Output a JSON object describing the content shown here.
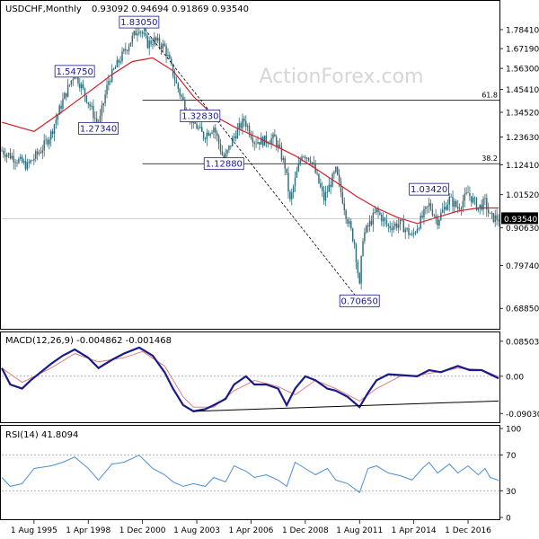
{
  "header": {
    "symbol": "USDCHF,Monthly",
    "ohlc": "0.93092 0.94694 0.91869 0.93540"
  },
  "watermark": "ActionForex.com",
  "colors": {
    "candle": "#2f6b78",
    "ma": "#d0202a",
    "macd": "#1a1a8c",
    "signal": "#e08080",
    "rsi": "#4a8fd8",
    "grid": "#c8c8c8",
    "axis": "#000000",
    "trend": "#000000",
    "label_border": "#1a1a8c"
  },
  "chart_data": [
    {
      "type": "candlestick",
      "panel": "price",
      "y_scale": "log",
      "ylim": [
        0.65,
        1.95
      ],
      "y_ticks": [
        1.7841,
        1.6719,
        1.563,
        1.4541,
        1.3452,
        1.2363,
        1.1241,
        1.0152,
        0.9063,
        0.7974,
        0.6885
      ],
      "y_tick_labels": [
        "1.78410",
        "1.67190",
        "1.56300",
        "1.45410",
        "1.34520",
        "1.23630",
        "1.12410",
        "1.01520",
        "0.90630",
        "0.79740",
        "0.68850"
      ],
      "x_range": [
        "1994-01",
        "2018-06"
      ],
      "x_ticks": [
        "1995-08",
        "1998-04",
        "2000-12",
        "2003-08",
        "2006-04",
        "2008-12",
        "2011-08",
        "2014-04",
        "2016-12"
      ],
      "x_tick_labels": [
        "1 Aug 1995",
        "1 Apr 1998",
        "1 Dec 2000",
        "1 Aug 2003",
        "1 Apr 2006",
        "1 Dec 2008",
        "1 Aug 2011",
        "1 Apr 2014",
        "1 Dec 2016"
      ],
      "price_path": [
        [
          "1994-01",
          1.18
        ],
        [
          "1995-04",
          1.12
        ],
        [
          "1996-01",
          1.19
        ],
        [
          "1996-06",
          1.25
        ],
        [
          "1997-01",
          1.4
        ],
        [
          "1997-08",
          1.54
        ],
        [
          "1998-01",
          1.45
        ],
        [
          "1998-10",
          1.28
        ],
        [
          "1999-04",
          1.5
        ],
        [
          "2000-01",
          1.65
        ],
        [
          "2000-10",
          1.8
        ],
        [
          "2001-03",
          1.7
        ],
        [
          "2001-07",
          1.72
        ],
        [
          "2002-01",
          1.68
        ],
        [
          "2002-08",
          1.48
        ],
        [
          "2003-02",
          1.35
        ],
        [
          "2003-06",
          1.3
        ],
        [
          "2003-12",
          1.24
        ],
        [
          "2004-06",
          1.28
        ],
        [
          "2004-12",
          1.14
        ],
        [
          "2005-06",
          1.24
        ],
        [
          "2005-12",
          1.31
        ],
        [
          "2006-06",
          1.22
        ],
        [
          "2006-11",
          1.22
        ],
        [
          "2007-06",
          1.23
        ],
        [
          "2007-12",
          1.12
        ],
        [
          "2008-03",
          0.99
        ],
        [
          "2008-10",
          1.17
        ],
        [
          "2009-03",
          1.15
        ],
        [
          "2009-11",
          1.0
        ],
        [
          "2010-06",
          1.1
        ],
        [
          "2010-12",
          0.95
        ],
        [
          "2011-05",
          0.86
        ],
        [
          "2011-08",
          0.74
        ],
        [
          "2011-10",
          0.88
        ],
        [
          "2012-06",
          0.96
        ],
        [
          "2013-01",
          0.91
        ],
        [
          "2013-08",
          0.92
        ],
        [
          "2014-03",
          0.88
        ],
        [
          "2014-09",
          0.94
        ],
        [
          "2015-01",
          0.98
        ],
        [
          "2015-06",
          0.93
        ],
        [
          "2016-01",
          1.0
        ],
        [
          "2016-06",
          0.97
        ],
        [
          "2016-12",
          1.02
        ],
        [
          "2017-06",
          0.97
        ],
        [
          "2017-10",
          0.99
        ],
        [
          "2018-01",
          0.94
        ],
        [
          "2018-06",
          0.9354
        ]
      ],
      "ma_path": [
        [
          "1994-01",
          1.3
        ],
        [
          "1995-08",
          1.26
        ],
        [
          "1997-01",
          1.35
        ],
        [
          "1998-04",
          1.44
        ],
        [
          "1999-06",
          1.53
        ],
        [
          "2000-06",
          1.6
        ],
        [
          "2001-06",
          1.62
        ],
        [
          "2002-06",
          1.55
        ],
        [
          "2003-06",
          1.42
        ],
        [
          "2004-06",
          1.33
        ],
        [
          "2005-06",
          1.28
        ],
        [
          "2006-06",
          1.24
        ],
        [
          "2007-06",
          1.2
        ],
        [
          "2008-06",
          1.16
        ],
        [
          "2009-06",
          1.11
        ],
        [
          "2010-06",
          1.06
        ],
        [
          "2011-06",
          1.01
        ],
        [
          "2012-06",
          0.97
        ],
        [
          "2013-06",
          0.94
        ],
        [
          "2014-06",
          0.92
        ],
        [
          "2015-06",
          0.94
        ],
        [
          "2016-06",
          0.96
        ],
        [
          "2017-06",
          0.97
        ],
        [
          "2018-06",
          0.97
        ]
      ],
      "current_price": {
        "value": 0.9354,
        "label": "0.93540"
      },
      "price_labels": [
        {
          "text": "1.83050",
          "date": "2000-10",
          "value": 1.8305
        },
        {
          "text": "1.54750",
          "date": "1997-08",
          "value": 1.5475
        },
        {
          "text": "1.27340",
          "date": "1998-10",
          "value": 1.2734
        },
        {
          "text": "1.32830",
          "date": "2003-10",
          "value": 1.3283
        },
        {
          "text": "1.12880",
          "date": "2004-12",
          "value": 1.1288
        },
        {
          "text": "0.70650",
          "date": "2011-08",
          "value": 0.7065
        },
        {
          "text": "1.03420",
          "date": "2015-01",
          "value": 1.0342
        }
      ],
      "retracement_lines": [
        {
          "label": "61.8",
          "value": 1.4025,
          "from": "2000-12"
        },
        {
          "label": "38.2",
          "value": 1.1285,
          "from": "2000-12"
        }
      ],
      "trendline": {
        "from": [
          "2000-10",
          1.8305
        ],
        "to": [
          "2011-08",
          0.7065
        ]
      }
    },
    {
      "type": "line",
      "panel": "macd",
      "title": "MACD(12,26,9) -0.004862 -0.001468",
      "ylim": [
        -0.105,
        0.1
      ],
      "y_ticks": [
        0.085032,
        0.0,
        -0.090302
      ],
      "y_tick_labels": [
        "0.085032",
        "0.00",
        "-0.090302"
      ],
      "series": [
        {
          "name": "MACD",
          "points": [
            [
              "1994-01",
              0.02
            ],
            [
              "1994-06",
              -0.02
            ],
            [
              "1995-01",
              -0.03
            ],
            [
              "1995-06",
              -0.01
            ],
            [
              "1996-06",
              0.03
            ],
            [
              "1997-01",
              0.05
            ],
            [
              "1997-08",
              0.065
            ],
            [
              "1998-04",
              0.045
            ],
            [
              "1998-10",
              0.02
            ],
            [
              "1999-06",
              0.04
            ],
            [
              "2000-01",
              0.055
            ],
            [
              "2000-10",
              0.07
            ],
            [
              "2001-06",
              0.05
            ],
            [
              "2002-01",
              0.01
            ],
            [
              "2002-06",
              -0.03
            ],
            [
              "2002-12",
              -0.07
            ],
            [
              "2003-06",
              -0.085
            ],
            [
              "2004-01",
              -0.08
            ],
            [
              "2004-06",
              -0.07
            ],
            [
              "2005-01",
              -0.055
            ],
            [
              "2005-06",
              -0.02
            ],
            [
              "2006-01",
              0.0
            ],
            [
              "2006-06",
              -0.02
            ],
            [
              "2007-01",
              -0.02
            ],
            [
              "2007-08",
              -0.03
            ],
            [
              "2008-01",
              -0.07
            ],
            [
              "2008-06",
              -0.03
            ],
            [
              "2008-12",
              0.0
            ],
            [
              "2009-06",
              -0.01
            ],
            [
              "2010-01",
              -0.03
            ],
            [
              "2010-06",
              -0.035
            ],
            [
              "2011-01",
              -0.05
            ],
            [
              "2011-08",
              -0.075
            ],
            [
              "2012-01",
              -0.04
            ],
            [
              "2012-06",
              -0.01
            ],
            [
              "2013-01",
              0.005
            ],
            [
              "2013-08",
              0.003
            ],
            [
              "2014-06",
              0.0
            ],
            [
              "2015-01",
              0.015
            ],
            [
              "2015-08",
              0.01
            ],
            [
              "2016-06",
              0.025
            ],
            [
              "2017-01",
              0.015
            ],
            [
              "2017-08",
              0.015
            ],
            [
              "2018-01",
              0.005
            ],
            [
              "2018-06",
              -0.005
            ]
          ]
        },
        {
          "name": "Signal",
          "points": [
            [
              "1994-01",
              0.02
            ],
            [
              "1995-01",
              -0.015
            ],
            [
              "1996-06",
              0.02
            ],
            [
              "1997-08",
              0.055
            ],
            [
              "1998-10",
              0.035
            ],
            [
              "2000-01",
              0.045
            ],
            [
              "2000-12",
              0.06
            ],
            [
              "2002-01",
              0.025
            ],
            [
              "2002-12",
              -0.05
            ],
            [
              "2003-06",
              -0.075
            ],
            [
              "2004-06",
              -0.075
            ],
            [
              "2005-06",
              -0.035
            ],
            [
              "2006-06",
              -0.01
            ],
            [
              "2007-08",
              -0.025
            ],
            [
              "2008-06",
              -0.045
            ],
            [
              "2009-06",
              -0.01
            ],
            [
              "2010-06",
              -0.03
            ],
            [
              "2011-08",
              -0.06
            ],
            [
              "2012-06",
              -0.03
            ],
            [
              "2013-08",
              0.0
            ],
            [
              "2014-06",
              0.002
            ],
            [
              "2015-08",
              0.012
            ],
            [
              "2016-06",
              0.02
            ],
            [
              "2017-08",
              0.016
            ],
            [
              "2018-06",
              -0.001
            ]
          ]
        }
      ],
      "trendline": {
        "from": [
          "2003-06",
          -0.085
        ],
        "to": [
          "2018-06",
          -0.06
        ]
      }
    },
    {
      "type": "line",
      "panel": "rsi",
      "title": "RSI(14) 41.8094",
      "ylim": [
        0,
        100
      ],
      "y_ticks": [
        100,
        70,
        30,
        0
      ],
      "y_tick_labels": [
        "100",
        "70",
        "30",
        "0"
      ],
      "levels": [
        70,
        30
      ],
      "series": [
        {
          "name": "RSI",
          "points": [
            [
              "1994-01",
              45
            ],
            [
              "1994-06",
              35
            ],
            [
              "1995-01",
              38
            ],
            [
              "1995-08",
              55
            ],
            [
              "1996-06",
              58
            ],
            [
              "1997-01",
              62
            ],
            [
              "1997-08",
              68
            ],
            [
              "1998-04",
              55
            ],
            [
              "1998-10",
              42
            ],
            [
              "1999-06",
              60
            ],
            [
              "2000-01",
              62
            ],
            [
              "2000-10",
              70
            ],
            [
              "2001-06",
              55
            ],
            [
              "2002-01",
              48
            ],
            [
              "2002-06",
              40
            ],
            [
              "2002-12",
              35
            ],
            [
              "2003-06",
              38
            ],
            [
              "2004-01",
              35
            ],
            [
              "2004-06",
              45
            ],
            [
              "2005-01",
              40
            ],
            [
              "2005-06",
              58
            ],
            [
              "2006-01",
              52
            ],
            [
              "2006-06",
              45
            ],
            [
              "2007-01",
              48
            ],
            [
              "2007-08",
              42
            ],
            [
              "2008-01",
              35
            ],
            [
              "2008-06",
              62
            ],
            [
              "2008-12",
              55
            ],
            [
              "2009-06",
              48
            ],
            [
              "2010-01",
              55
            ],
            [
              "2010-06",
              42
            ],
            [
              "2011-01",
              38
            ],
            [
              "2011-08",
              28
            ],
            [
              "2012-01",
              55
            ],
            [
              "2012-06",
              58
            ],
            [
              "2013-01",
              50
            ],
            [
              "2013-08",
              47
            ],
            [
              "2014-03",
              42
            ],
            [
              "2014-09",
              55
            ],
            [
              "2015-01",
              62
            ],
            [
              "2015-06",
              50
            ],
            [
              "2016-01",
              60
            ],
            [
              "2016-06",
              50
            ],
            [
              "2016-12",
              58
            ],
            [
              "2017-06",
              48
            ],
            [
              "2017-10",
              55
            ],
            [
              "2018-01",
              45
            ],
            [
              "2018-06",
              41.8094
            ]
          ]
        }
      ]
    }
  ]
}
